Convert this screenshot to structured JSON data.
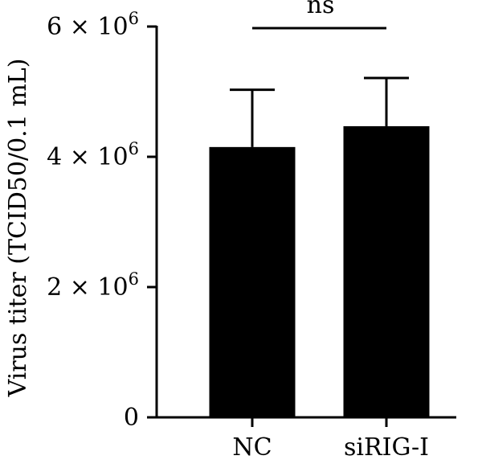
{
  "chart_data": {
    "type": "bar",
    "title": "",
    "xlabel": "",
    "ylabel": "Virus titer (TCID50/0.1 mL)",
    "categories": [
      "NC",
      "siRIG-I"
    ],
    "values": [
      4150000,
      4470000
    ],
    "errors": [
      880000,
      740000
    ],
    "ylim": [
      0,
      6000000
    ],
    "yticks": [
      {
        "value": 0,
        "mantissa": "0",
        "exponent": ""
      },
      {
        "value": 2000000,
        "mantissa": "2 × 10",
        "exponent": "6"
      },
      {
        "value": 4000000,
        "mantissa": "4 × 10",
        "exponent": "6"
      },
      {
        "value": 6000000,
        "mantissa": "6 × 10",
        "exponent": "6"
      }
    ],
    "significance": {
      "label": "ns",
      "between": [
        "NC",
        "siRIG-I"
      ]
    },
    "bar_color": "#000000",
    "grid": false,
    "legend": "none"
  }
}
